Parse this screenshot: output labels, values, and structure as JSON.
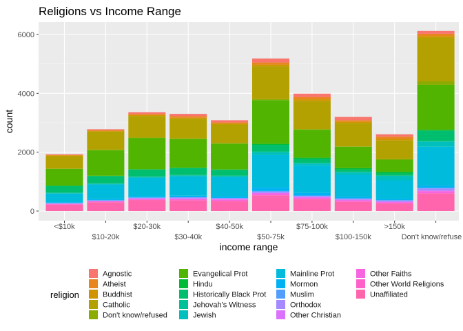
{
  "chart_data": {
    "type": "bar",
    "stacked": true,
    "title": "Religions vs Income Range",
    "xlabel": "income range",
    "ylabel": "count",
    "ylim": [
      0,
      6200
    ],
    "yticks": [
      0,
      2000,
      4000,
      6000
    ],
    "grid": true,
    "legend_title": "religion",
    "legend_position": "bottom",
    "categories": [
      "<$10k",
      "$10-20k",
      "$20-30k",
      "$30-40k",
      "$40-50k",
      "$50-75k",
      "$75-100k",
      "$100-150k",
      ">150k",
      "Don't know/refused"
    ],
    "category_labels": [
      "<$10k",
      "$10-20k",
      "$20-30k",
      "$30-40k",
      "$40-50k",
      "$50-75k",
      "$75-100k",
      "$100-150k",
      ">150k",
      "Don't know/refuse"
    ],
    "series": [
      {
        "name": "Agnostic",
        "color": "#F8766D",
        "values": [
          27,
          34,
          60,
          81,
          76,
          137,
          122,
          109,
          84,
          96
        ]
      },
      {
        "name": "Atheist",
        "color": "#E7851E",
        "values": [
          12,
          27,
          37,
          52,
          35,
          70,
          73,
          59,
          74,
          76
        ]
      },
      {
        "name": "Buddhist",
        "color": "#D09400",
        "values": [
          27,
          21,
          30,
          34,
          33,
          58,
          62,
          39,
          53,
          54
        ]
      },
      {
        "name": "Catholic",
        "color": "#B2A100",
        "values": [
          418,
          617,
          732,
          670,
          638,
          1116,
          949,
          792,
          633,
          1489
        ]
      },
      {
        "name": "Don't know/refused",
        "color": "#8BAB00",
        "values": [
          15,
          14,
          15,
          11,
          10,
          35,
          21,
          17,
          18,
          116
        ]
      },
      {
        "name": "Evangelical Prot",
        "color": "#50B400",
        "values": [
          575,
          869,
          1064,
          982,
          881,
          1486,
          949,
          723,
          414,
          1529
        ]
      },
      {
        "name": "Hindu",
        "color": "#00BA38",
        "values": [
          1,
          9,
          7,
          9,
          11,
          34,
          47,
          48,
          54,
          37
        ]
      },
      {
        "name": "Historically Black Prot",
        "color": "#00BE6D",
        "values": [
          228,
          244,
          236,
          238,
          197,
          223,
          131,
          81,
          78,
          339
        ]
      },
      {
        "name": "Jehovah's Witness",
        "color": "#00C097",
        "values": [
          20,
          27,
          24,
          24,
          21,
          30,
          15,
          11,
          6,
          37
        ]
      },
      {
        "name": "Jewish",
        "color": "#00BFBC",
        "values": [
          19,
          19,
          25,
          25,
          30,
          95,
          69,
          87,
          151,
          162
        ]
      },
      {
        "name": "Mainline Prot",
        "color": "#00BBDB",
        "values": [
          289,
          495,
          619,
          655,
          651,
          1107,
          939,
          753,
          634,
          1328
        ]
      },
      {
        "name": "Mormon",
        "color": "#00B2F3",
        "values": [
          29,
          40,
          48,
          51,
          56,
          112,
          85,
          49,
          42,
          69
        ]
      },
      {
        "name": "Muslim",
        "color": "#529EFF",
        "values": [
          6,
          7,
          9,
          10,
          9,
          23,
          16,
          8,
          6,
          22
        ]
      },
      {
        "name": "Orthodox",
        "color": "#A58AFF",
        "values": [
          13,
          17,
          23,
          32,
          32,
          47,
          38,
          42,
          46,
          73
        ]
      },
      {
        "name": "Other Christian",
        "color": "#DB72FB",
        "values": [
          9,
          7,
          11,
          13,
          13,
          14,
          18,
          14,
          12,
          18
        ]
      },
      {
        "name": "Other Faiths",
        "color": "#F763E0",
        "values": [
          20,
          33,
          40,
          46,
          49,
          63,
          46,
          40,
          41,
          71
        ]
      },
      {
        "name": "Other World Religions",
        "color": "#FF61C9",
        "values": [
          5,
          2,
          3,
          4,
          2,
          7,
          3,
          4,
          4,
          8
        ]
      },
      {
        "name": "Unaffiliated",
        "color": "#FF65AC",
        "values": [
          217,
          299,
          374,
          365,
          341,
          528,
          407,
          321,
          258,
          597
        ]
      }
    ]
  }
}
